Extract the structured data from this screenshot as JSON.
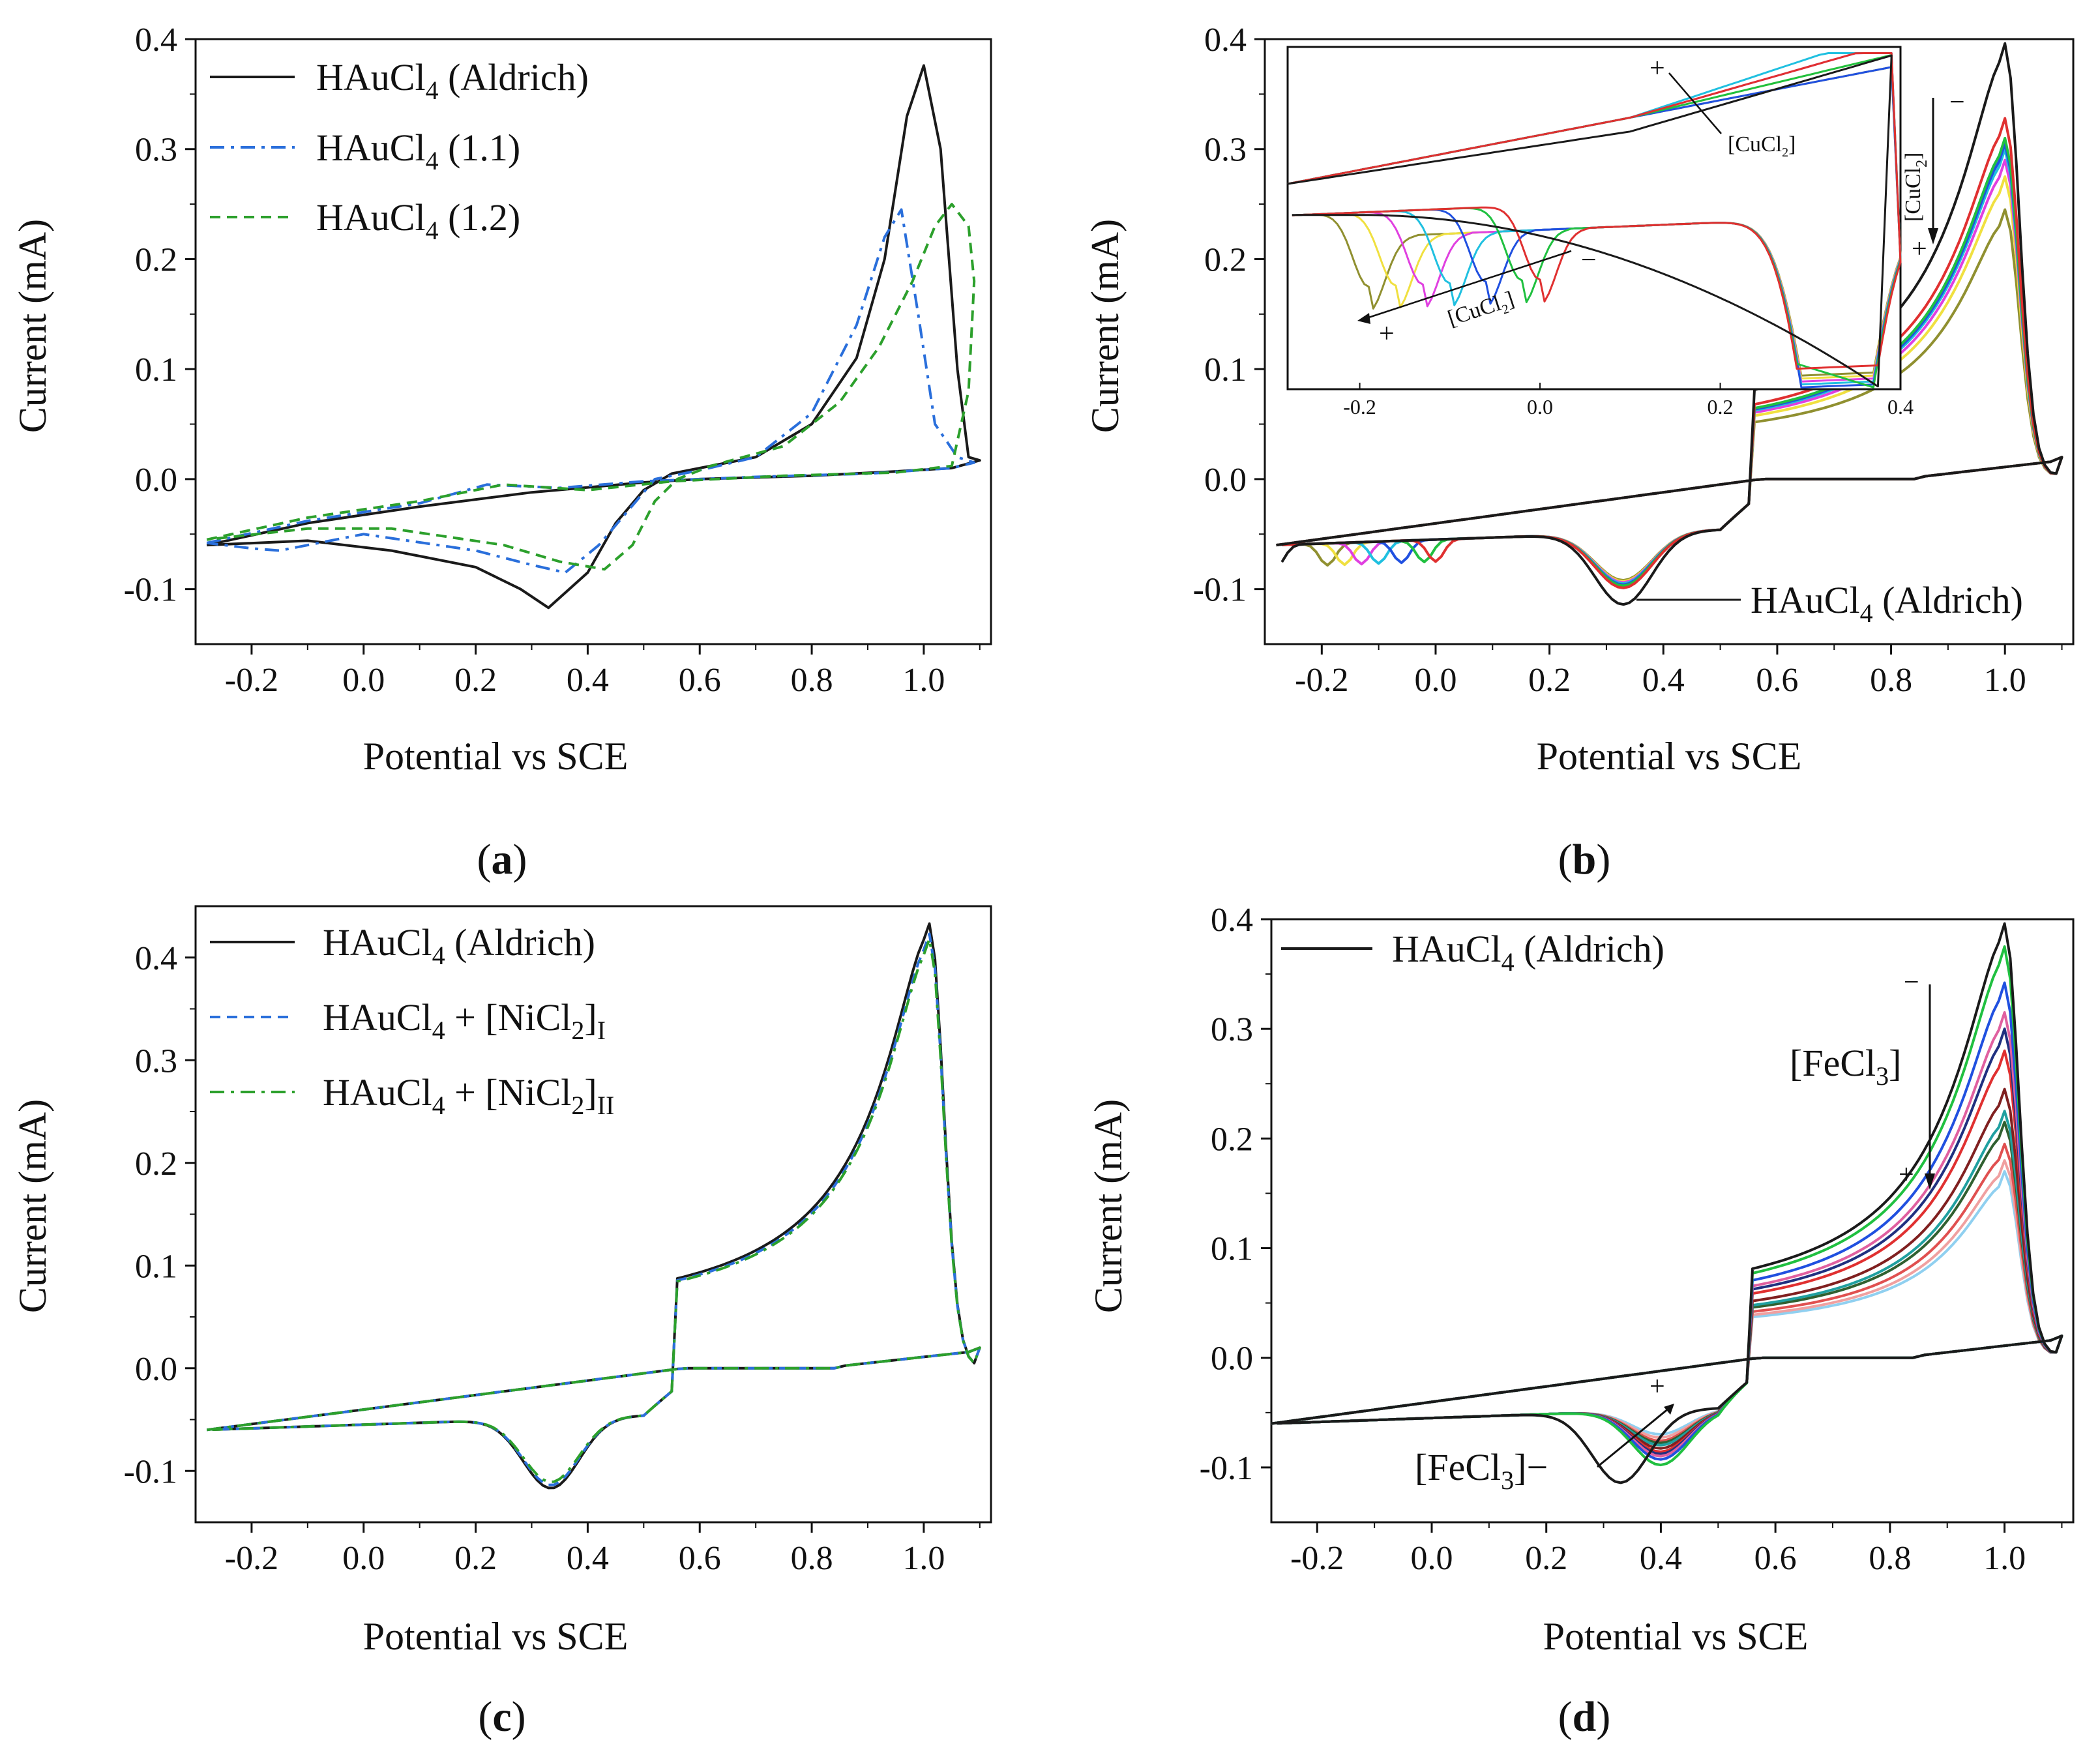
{
  "chart_data": [
    {
      "panel": "a",
      "type": "line",
      "panel_label": "(a)",
      "xlabel": "Potential vs SCE",
      "ylabel": "Current (mA)",
      "xlim": [
        -0.3,
        1.12
      ],
      "ylim": [
        -0.15,
        0.4
      ],
      "xticks": [
        "-0.2",
        "0.0",
        "0.2",
        "0.4",
        "0.6",
        "0.8",
        "1.0"
      ],
      "yticks": [
        "-0.1",
        "0.0",
        "0.1",
        "0.2",
        "0.3",
        "0.4"
      ],
      "legend": "top-left",
      "series": [
        {
          "name": "HAuCl4 (Aldrich)",
          "legend_main": "HAuCl",
          "legend_sub": "4",
          "legend_tail": " (Aldrich)",
          "color": "#1a1a1a",
          "style": "solid",
          "points": [
            [
              -0.28,
              -0.06
            ],
            [
              -0.1,
              -0.04
            ],
            [
              0.1,
              -0.025
            ],
            [
              0.3,
              -0.012
            ],
            [
              0.5,
              -0.003
            ],
            [
              0.6,
              0.0
            ],
            [
              0.8,
              0.003
            ],
            [
              0.95,
              0.007
            ],
            [
              1.05,
              0.01
            ],
            [
              1.1,
              0.017
            ],
            [
              1.08,
              0.02
            ],
            [
              1.06,
              0.1
            ],
            [
              1.03,
              0.3
            ],
            [
              1.0,
              0.376
            ],
            [
              0.97,
              0.33
            ],
            [
              0.93,
              0.2
            ],
            [
              0.88,
              0.11
            ],
            [
              0.8,
              0.05
            ],
            [
              0.7,
              0.02
            ],
            [
              0.6,
              0.01
            ],
            [
              0.55,
              0.005
            ],
            [
              0.5,
              -0.01
            ],
            [
              0.45,
              -0.04
            ],
            [
              0.4,
              -0.085
            ],
            [
              0.33,
              -0.117
            ],
            [
              0.28,
              -0.1
            ],
            [
              0.2,
              -0.08
            ],
            [
              0.05,
              -0.065
            ],
            [
              -0.1,
              -0.056
            ],
            [
              -0.28,
              -0.06
            ]
          ]
        },
        {
          "name": "HAuCl4 (1.1)",
          "legend_main": "HAuCl",
          "legend_sub": "4",
          "legend_tail": " (1.1)",
          "color": "#2a6fdb",
          "style": "dashdot",
          "points": [
            [
              -0.28,
              -0.058
            ],
            [
              -0.1,
              -0.038
            ],
            [
              0.1,
              -0.022
            ],
            [
              0.22,
              -0.005
            ],
            [
              0.35,
              -0.008
            ],
            [
              0.5,
              -0.002
            ],
            [
              0.7,
              0.002
            ],
            [
              0.9,
              0.005
            ],
            [
              1.05,
              0.01
            ],
            [
              1.09,
              0.015
            ],
            [
              1.06,
              0.02
            ],
            [
              1.02,
              0.05
            ],
            [
              0.99,
              0.15
            ],
            [
              0.96,
              0.245
            ],
            [
              0.93,
              0.22
            ],
            [
              0.88,
              0.14
            ],
            [
              0.8,
              0.06
            ],
            [
              0.7,
              0.02
            ],
            [
              0.6,
              0.008
            ],
            [
              0.52,
              0.0
            ],
            [
              0.47,
              -0.03
            ],
            [
              0.42,
              -0.06
            ],
            [
              0.36,
              -0.085
            ],
            [
              0.3,
              -0.078
            ],
            [
              0.2,
              -0.065
            ],
            [
              0.0,
              -0.05
            ],
            [
              -0.15,
              -0.065
            ],
            [
              -0.2,
              -0.063
            ],
            [
              -0.28,
              -0.058
            ]
          ]
        },
        {
          "name": "HAuCl4 (1.2)",
          "legend_main": "HAuCl",
          "legend_sub": "4",
          "legend_tail": " (1.2)",
          "color": "#2ca02c",
          "style": "dashed",
          "points": [
            [
              -0.28,
              -0.055
            ],
            [
              -0.1,
              -0.035
            ],
            [
              0.1,
              -0.02
            ],
            [
              0.25,
              -0.005
            ],
            [
              0.4,
              -0.01
            ],
            [
              0.55,
              -0.002
            ],
            [
              0.75,
              0.003
            ],
            [
              0.95,
              0.006
            ],
            [
              1.05,
              0.012
            ],
            [
              1.08,
              0.08
            ],
            [
              1.09,
              0.18
            ],
            [
              1.08,
              0.23
            ],
            [
              1.05,
              0.25
            ],
            [
              1.02,
              0.23
            ],
            [
              0.98,
              0.18
            ],
            [
              0.92,
              0.12
            ],
            [
              0.85,
              0.07
            ],
            [
              0.75,
              0.03
            ],
            [
              0.62,
              0.012
            ],
            [
              0.56,
              0.0
            ],
            [
              0.52,
              -0.02
            ],
            [
              0.48,
              -0.06
            ],
            [
              0.43,
              -0.082
            ],
            [
              0.35,
              -0.075
            ],
            [
              0.25,
              -0.06
            ],
            [
              0.05,
              -0.045
            ],
            [
              -0.1,
              -0.045
            ],
            [
              -0.28,
              -0.055
            ]
          ]
        }
      ]
    },
    {
      "panel": "b",
      "type": "line",
      "panel_label": "(b)",
      "xlabel": "Potential vs SCE",
      "ylabel": "Current (mA)",
      "xlim": [
        -0.3,
        1.12
      ],
      "ylim": [
        -0.15,
        0.4
      ],
      "xticks": [
        "-0.2",
        "0.0",
        "0.2",
        "0.4",
        "0.6",
        "0.8",
        "1.0"
      ],
      "yticks": [
        "-0.1",
        "0.0",
        "0.1",
        "0.2",
        "0.3",
        "0.4"
      ],
      "annotation": {
        "main": "HAuCl",
        "sub": "4",
        "tail": " (Aldrich)"
      },
      "arrow_label": {
        "main": "[CuCl",
        "sub": "2",
        "tail": "]",
        "plus": "+",
        "minus": "−"
      },
      "series": [
        {
          "name": "HAuCl4 (Aldrich)",
          "color": "#1a1a1a",
          "peak": 0.376,
          "red_peak": 0.33,
          "red_min": -0.115,
          "tail_x": -0.28
        },
        {
          "name": "CuCl2 1",
          "color": "#e03030",
          "peak": 0.308,
          "red_peak": 0.33,
          "red_min": -0.1,
          "tail_x": -0.0
        },
        {
          "name": "CuCl2 2",
          "color": "#20c040",
          "peak": 0.29,
          "red_peak": 0.33,
          "red_min": -0.098,
          "tail_x": -0.02
        },
        {
          "name": "CuCl2 3",
          "color": "#2050e0",
          "peak": 0.285,
          "red_peak": 0.33,
          "red_min": -0.097,
          "tail_x": -0.06
        },
        {
          "name": "CuCl2 4",
          "color": "#20c0e0",
          "peak": 0.28,
          "red_peak": 0.33,
          "red_min": -0.096,
          "tail_x": -0.1
        },
        {
          "name": "CuCl2 5",
          "color": "#e040e0",
          "peak": 0.27,
          "red_peak": 0.33,
          "red_min": -0.095,
          "tail_x": -0.13
        },
        {
          "name": "CuCl2 6",
          "color": "#f0e040",
          "peak": 0.255,
          "red_peak": 0.33,
          "red_min": -0.094,
          "tail_x": -0.16
        },
        {
          "name": "CuCl2 7",
          "color": "#909030",
          "peak": 0.225,
          "red_peak": 0.33,
          "red_min": -0.093,
          "tail_x": -0.19
        }
      ],
      "inset": {
        "xlim": [
          -0.28,
          0.4
        ],
        "ylim": [
          -0.09,
          -0.035
        ],
        "xticks": [
          "-0.2",
          "0.0",
          "0.2",
          "0.4"
        ]
      }
    },
    {
      "panel": "c",
      "type": "line",
      "panel_label": "(c)",
      "xlabel": "Potential vs SCE",
      "ylabel": "Current (mA)",
      "xlim": [
        -0.3,
        1.12
      ],
      "ylim": [
        -0.15,
        0.45
      ],
      "xticks": [
        "-0.2",
        "0.0",
        "0.2",
        "0.4",
        "0.6",
        "0.8",
        "1.0"
      ],
      "yticks": [
        "-0.1",
        "0.0",
        "0.1",
        "0.2",
        "0.3",
        "0.4"
      ],
      "legend": "top-left",
      "series": [
        {
          "name": "HAuCl4 (Aldrich)",
          "legend_main": "HAuCl",
          "legend_sub": "4",
          "legend_tail": " (Aldrich)",
          "legend_sub2": "",
          "color": "#1a1a1a",
          "style": "solid",
          "peak": 0.415
        },
        {
          "name": "HAuCl4 + [NiCl2]I",
          "legend_main": "HAuCl",
          "legend_sub": "4",
          "legend_tail": " + [NiCl",
          "legend_sub2": "2",
          "legend_tail2": "]",
          "legend_sub3": "I",
          "color": "#2a6fdb",
          "style": "dashed",
          "peak": 0.405
        },
        {
          "name": "HAuCl4 + [NiCl2]II",
          "legend_main": "HAuCl",
          "legend_sub": "4",
          "legend_tail": " + [NiCl",
          "legend_sub2": "2",
          "legend_tail2": "]",
          "legend_sub3": "II",
          "color": "#2ca02c",
          "style": "dashdot",
          "peak": 0.4
        }
      ]
    },
    {
      "panel": "d",
      "type": "line",
      "panel_label": "(d)",
      "xlabel": "Potential vs SCE",
      "ylabel": "Current (mA)",
      "xlim": [
        -0.28,
        1.12
      ],
      "ylim": [
        -0.15,
        0.4
      ],
      "xticks": [
        "-0.2",
        "0.0",
        "0.2",
        "0.4",
        "0.6",
        "0.8",
        "1.0"
      ],
      "yticks": [
        "-0.1",
        "0.0",
        "0.1",
        "0.2",
        "0.3",
        "0.4"
      ],
      "legend": "top-left",
      "legend_entry": {
        "main": "HAuCl",
        "sub": "4",
        "tail": " (Aldrich)"
      },
      "arrow_label": {
        "main": "[FeCl",
        "sub": "3",
        "tail": "]",
        "plus": "+",
        "minus": "−"
      },
      "series": [
        {
          "name": "HAuCl4 (Aldrich)",
          "color": "#1a1a1a",
          "peak": 0.376,
          "red_min": -0.115
        },
        {
          "name": "FeCl3 1",
          "color": "#20c040",
          "peak": 0.355,
          "red_min": -0.1
        },
        {
          "name": "FeCl3 2",
          "color": "#2050e0",
          "peak": 0.322,
          "red_min": -0.095
        },
        {
          "name": "FeCl3 3",
          "color": "#e060a0",
          "peak": 0.295,
          "red_min": -0.092
        },
        {
          "name": "FeCl3 4",
          "color": "#203080",
          "peak": 0.28,
          "red_min": -0.09
        },
        {
          "name": "FeCl3 5",
          "color": "#e03030",
          "peak": 0.26,
          "red_min": -0.088
        },
        {
          "name": "FeCl3 6",
          "color": "#802020",
          "peak": 0.225,
          "red_min": -0.085
        },
        {
          "name": "FeCl3 7",
          "color": "#20a0a0",
          "peak": 0.205,
          "red_min": -0.082
        },
        {
          "name": "FeCl3 8",
          "color": "#306030",
          "peak": 0.195,
          "red_min": -0.08
        },
        {
          "name": "FeCl3 9",
          "color": "#e05050",
          "peak": 0.175,
          "red_min": -0.078
        },
        {
          "name": "FeCl3 10",
          "color": "#f0a0a0",
          "peak": 0.16,
          "red_min": -0.075
        },
        {
          "name": "FeCl3 11",
          "color": "#90d0f0",
          "peak": 0.15,
          "red_min": -0.072
        }
      ]
    }
  ]
}
